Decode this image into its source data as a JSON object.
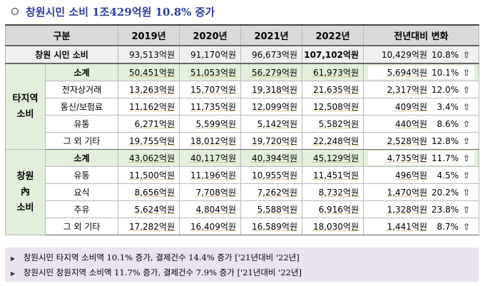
{
  "title": "창원시민 소비 1조429억원 10.8% 증가",
  "table": {
    "headers": [
      "구분",
      "2019년",
      "2020년",
      "2021년",
      "2022년",
      "전년대비 변화"
    ],
    "total": {
      "label": "창원 시민 소비",
      "v2019": "93,513억원",
      "v2020": "91,170억원",
      "v2021": "96,673억원",
      "v2022": "107,102억원",
      "diff_amt": "10,429억원",
      "diff_pct": "10.8%"
    },
    "groups": [
      {
        "category": "타지역\n소비",
        "rows": [
          {
            "label": "소계",
            "v2019": "50,451억원",
            "v2020": "51,053억원",
            "v2021": "56,279억원",
            "v2022": "61,973억원",
            "diff_amt": "5,694억원",
            "diff_pct": "10.1%"
          },
          {
            "label": "전자상거래",
            "v2019": "13,263억원",
            "v2020": "15,707억원",
            "v2021": "19,318억원",
            "v2022": "21,635억원",
            "diff_amt": "2,317억원",
            "diff_pct": "12.0%"
          },
          {
            "label": "통신/보험료",
            "v2019": "11,162억원",
            "v2020": "11,735억원",
            "v2021": "12,099억원",
            "v2022": "12,508억원",
            "diff_amt": "409억원",
            "diff_pct": "3.4%"
          },
          {
            "label": "유통",
            "v2019": "6,271억원",
            "v2020": "5,599억원",
            "v2021": "5,142억원",
            "v2022": "5,582억원",
            "diff_amt": "440억원",
            "diff_pct": "8.6%"
          },
          {
            "label": "그 외 기타",
            "v2019": "19,755억원",
            "v2020": "18,012억원",
            "v2021": "19,720억원",
            "v2022": "22,248억원",
            "diff_amt": "2,528억원",
            "diff_pct": "12.8%"
          }
        ]
      },
      {
        "category": "창원\n內\n소비",
        "rows": [
          {
            "label": "소계",
            "v2019": "43,062억원",
            "v2020": "40,117억원",
            "v2021": "40,394억원",
            "v2022": "45,129억원",
            "diff_amt": "4,735억원",
            "diff_pct": "11.7%"
          },
          {
            "label": "유통",
            "v2019": "11,500억원",
            "v2020": "11,196억원",
            "v2021": "10,955억원",
            "v2022": "11,451억원",
            "diff_amt": "496억원",
            "diff_pct": "4.5%"
          },
          {
            "label": "요식",
            "v2019": "8,656억원",
            "v2020": "7,708억원",
            "v2021": "7,262억원",
            "v2022": "8,732억원",
            "diff_amt": "1,470억원",
            "diff_pct": "20.2%"
          },
          {
            "label": "주유",
            "v2019": "5,624억원",
            "v2020": "4,804억원",
            "v2021": "5,588억원",
            "v2022": "6,916억원",
            "diff_amt": "1,328억원",
            "diff_pct": "23.8%"
          },
          {
            "label": "그 외 기타",
            "v2019": "17,282억원",
            "v2020": "16,409억원",
            "v2021": "16,589억원",
            "v2022": "18,030억원",
            "diff_amt": "1,441억원",
            "diff_pct": "8.7%"
          }
        ]
      }
    ],
    "arrow_glyph": "⇧"
  },
  "notes": [
    "창원시민  타지역 소비액 10.1% 증가, 결제건수 14.4% 증가 ['21년대비 '22년]",
    "창원시민 창원지역 소비액 11.7% 증가, 결제건수  7.9% 증가 ['21년대비 '22년]"
  ],
  "colors": {
    "title": "#2f3fa0",
    "header_bg": "#d9d9d9",
    "subtotal_bg": "#e2efda",
    "notes_bg": "#ece3f1"
  }
}
